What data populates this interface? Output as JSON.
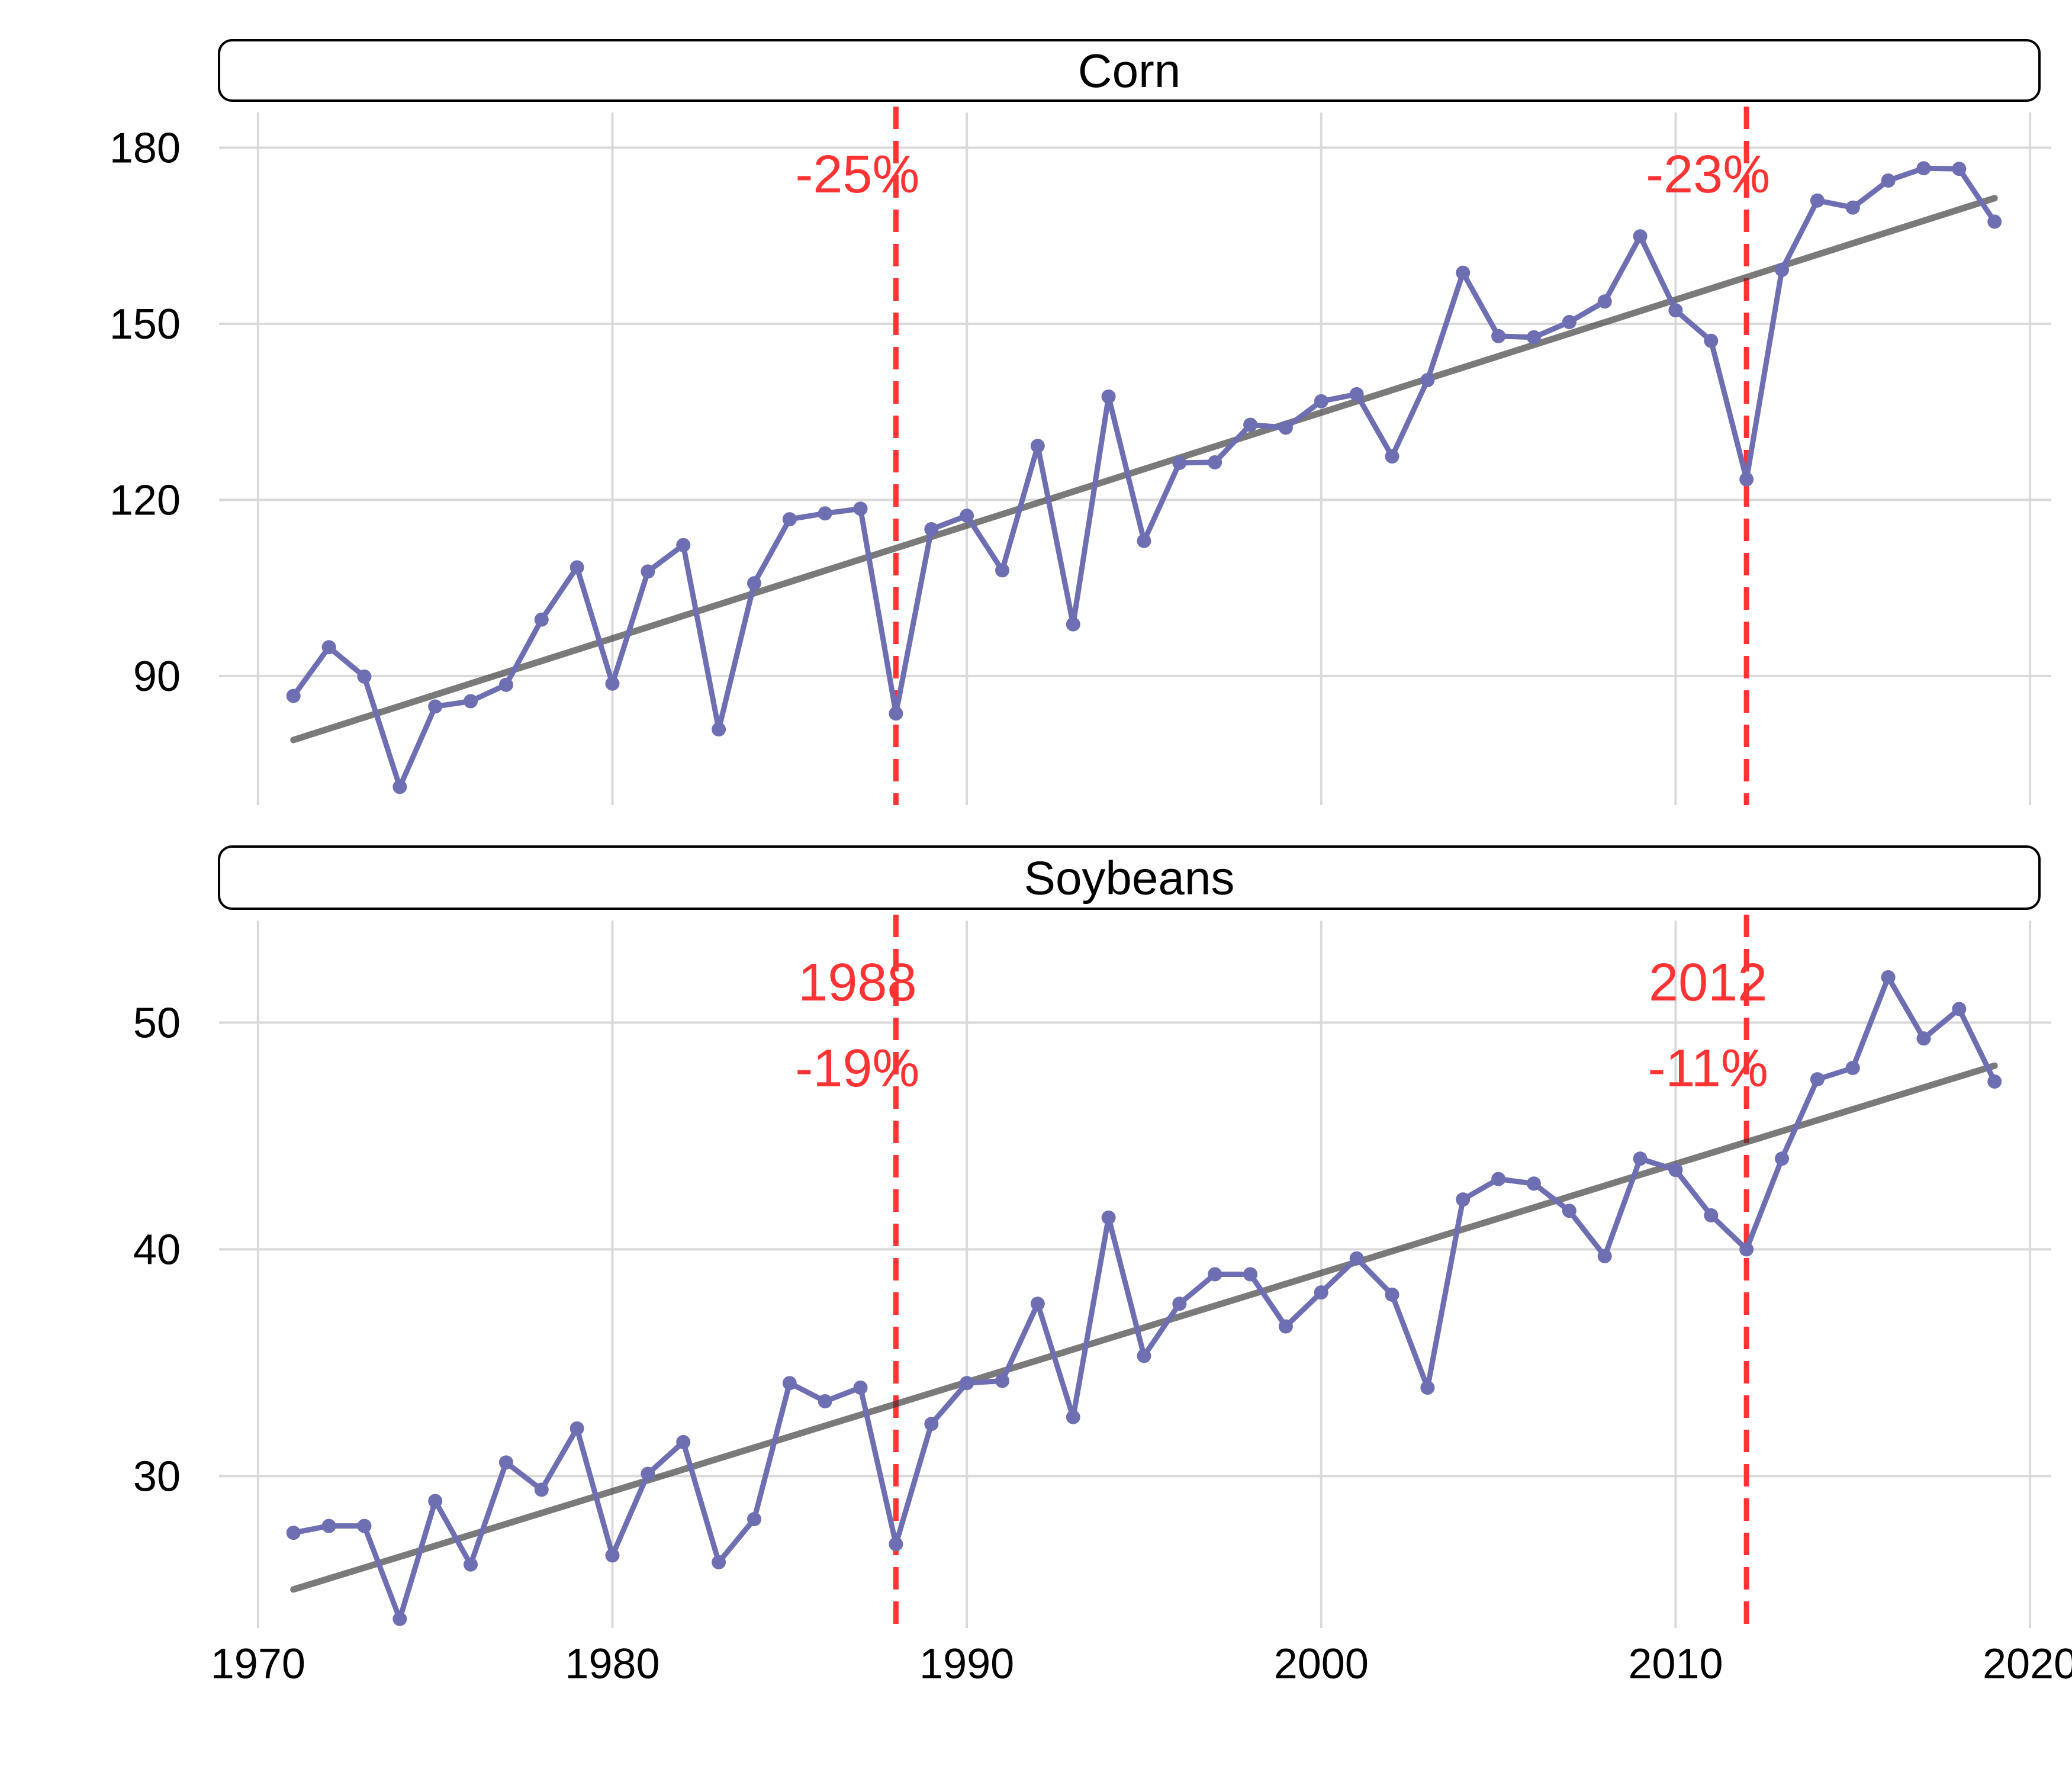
{
  "chart_data": {
    "type": "line",
    "x_ticks": [
      1970,
      1980,
      1990,
      2000,
      2010,
      2020
    ],
    "grid": true,
    "colors": {
      "line": "#6e6eb3",
      "trend": "#333333",
      "event": "#ff3333",
      "grid": "#d9d9d9"
    },
    "events": [
      1988,
      2012
    ],
    "panels": [
      {
        "title": "Corn",
        "ylim": [
          68,
          186
        ],
        "y_ticks": [
          90,
          120,
          150,
          180
        ],
        "x": [
          1971,
          1972,
          1973,
          1974,
          1975,
          1976,
          1977,
          1978,
          1979,
          1980,
          1981,
          1982,
          1983,
          1984,
          1985,
          1986,
          1987,
          1988,
          1989,
          1990,
          1991,
          1992,
          1993,
          1994,
          1995,
          1996,
          1997,
          1998,
          1999,
          2000,
          2001,
          2002,
          2003,
          2004,
          2005,
          2006,
          2007,
          2008,
          2009,
          2010,
          2011,
          2012,
          2013,
          2014,
          2015,
          2016,
          2017,
          2018,
          2019
        ],
        "values": [
          86.6,
          94.9,
          89.9,
          71.1,
          84.8,
          85.7,
          88.5,
          99.6,
          108.5,
          88.7,
          107.8,
          112.3,
          80.9,
          105.8,
          116.7,
          117.7,
          118.5,
          83.6,
          115.0,
          117.3,
          108.0,
          129.2,
          98.8,
          137.6,
          113.0,
          126.3,
          126.4,
          132.8,
          132.3,
          136.8,
          138.0,
          127.4,
          140.4,
          158.7,
          147.9,
          147.7,
          150.3,
          153.8,
          164.9,
          152.3,
          147.1,
          123.5,
          159.2,
          171.0,
          169.8,
          174.4,
          176.5,
          176.4,
          167.4
        ],
        "trend": [
          79.1,
          171.4
        ],
        "annotations": [
          {
            "x": 1988,
            "lines": [
              "-25%"
            ]
          },
          {
            "x": 2012,
            "lines": [
              "-23%"
            ]
          }
        ]
      },
      {
        "title": "Soybeans",
        "ylim": [
          23.3,
          54.5
        ],
        "y_ticks": [
          30,
          40,
          50
        ],
        "x": [
          1971,
          1972,
          1973,
          1974,
          1975,
          1976,
          1977,
          1978,
          1979,
          1980,
          1981,
          1982,
          1983,
          1984,
          1985,
          1986,
          1987,
          1988,
          1989,
          1990,
          1991,
          1992,
          1993,
          1994,
          1995,
          1996,
          1997,
          1998,
          1999,
          2000,
          2001,
          2002,
          2003,
          2004,
          2005,
          2006,
          2007,
          2008,
          2009,
          2010,
          2011,
          2012,
          2013,
          2014,
          2015,
          2016,
          2017,
          2018,
          2019
        ],
        "values": [
          27.5,
          27.8,
          27.8,
          23.7,
          28.9,
          26.1,
          30.6,
          29.4,
          32.1,
          26.5,
          30.1,
          31.5,
          26.2,
          28.1,
          34.1,
          33.3,
          33.9,
          27.0,
          32.3,
          34.1,
          34.2,
          37.6,
          32.6,
          41.4,
          35.3,
          37.6,
          38.9,
          38.9,
          36.6,
          38.1,
          39.6,
          38.0,
          33.9,
          42.2,
          43.1,
          42.9,
          41.7,
          39.7,
          44.0,
          43.5,
          41.5,
          40.0,
          44.0,
          47.5,
          48.0,
          52.0,
          49.3,
          50.6,
          47.4
        ],
        "trend": [
          25.0,
          48.1
        ],
        "annotations": [
          {
            "x": 1988,
            "lines": [
              "1988",
              "-19%"
            ]
          },
          {
            "x": 2012,
            "lines": [
              "2012",
              "-11%"
            ]
          }
        ]
      }
    ]
  }
}
